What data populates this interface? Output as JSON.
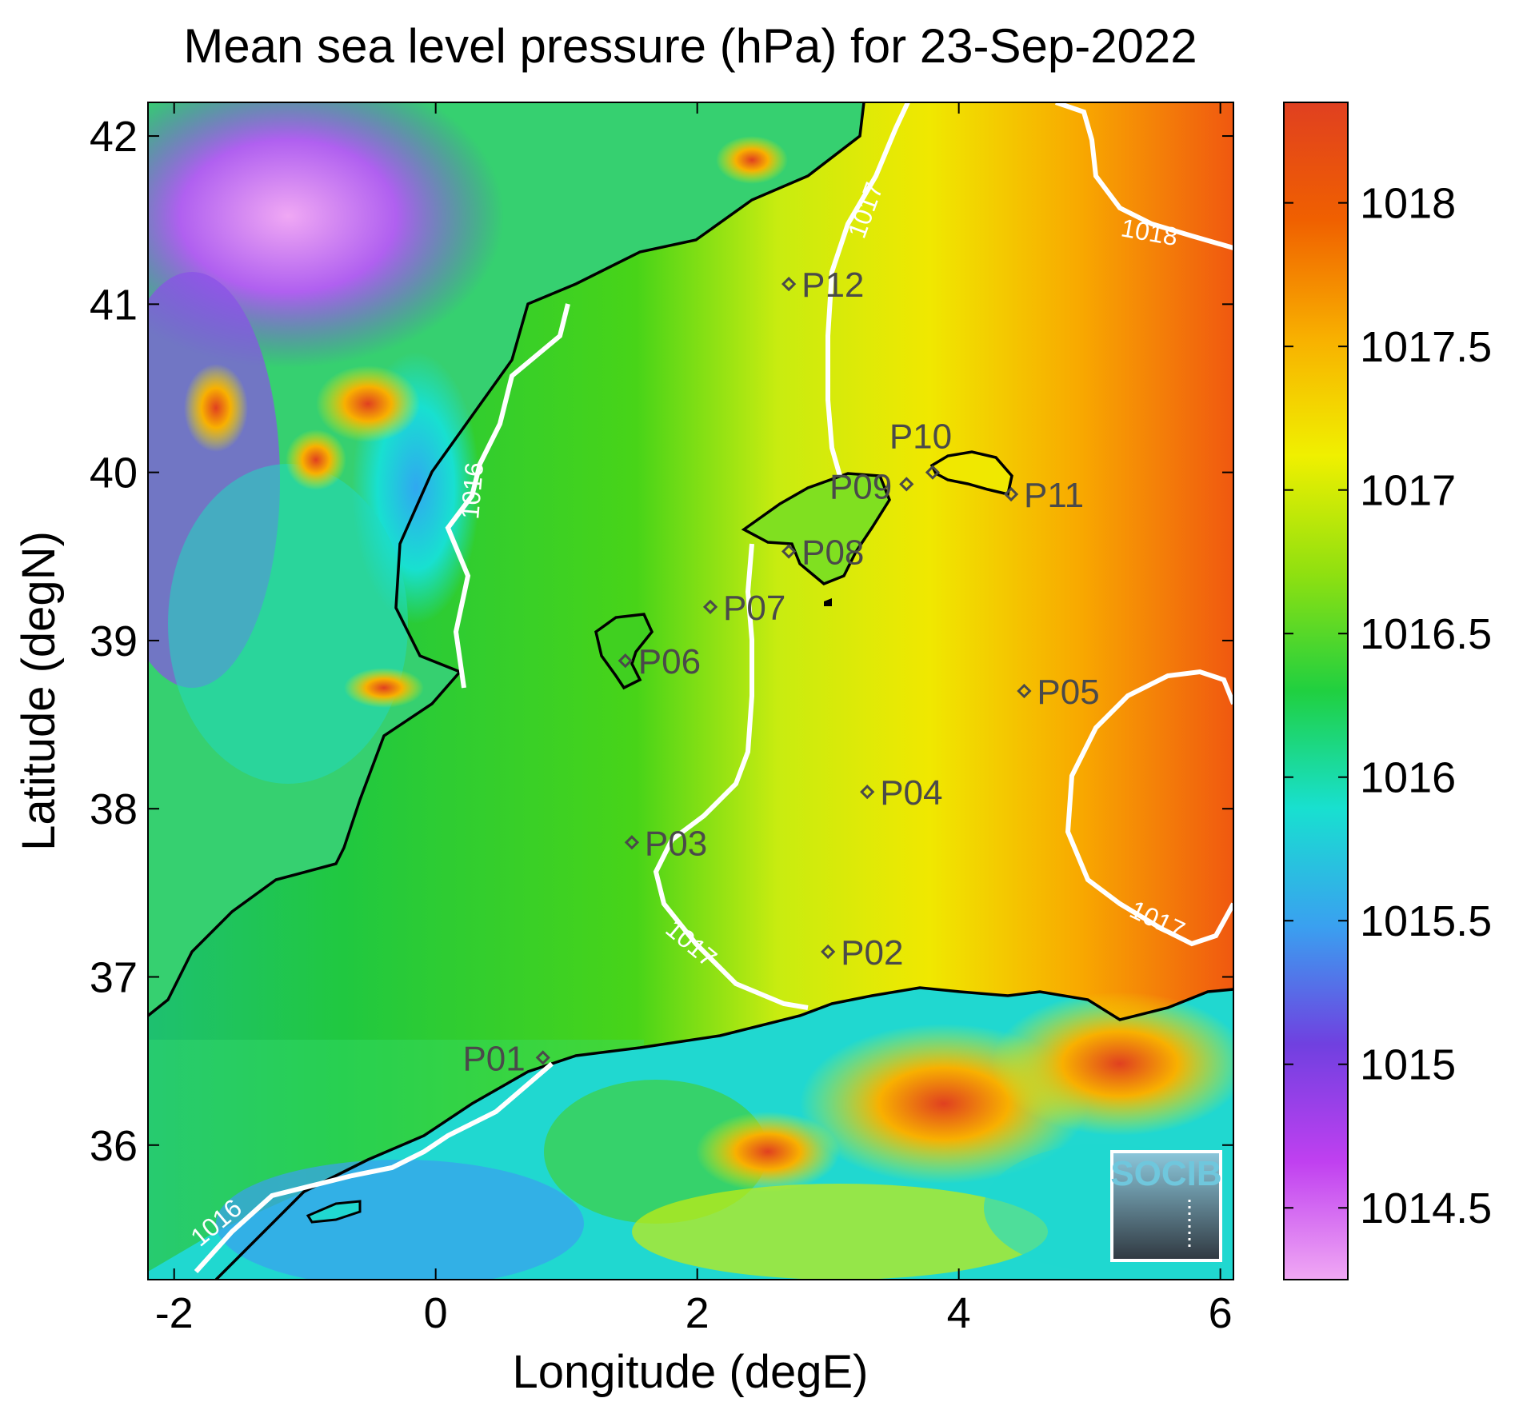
{
  "title": "Mean sea level pressure (hPa) for 23-Sep-2022",
  "xlabel": "Longitude (degE)",
  "ylabel": "Latitude (degN)",
  "x_ticks": [
    "-2",
    "0",
    "2",
    "4",
    "6"
  ],
  "y_ticks": [
    "36",
    "37",
    "38",
    "39",
    "40",
    "41",
    "42"
  ],
  "colorbar": {
    "ticks": [
      "1014.5",
      "1015",
      "1015.5",
      "1016",
      "1016.5",
      "1017",
      "1017.5",
      "1018"
    ],
    "range": [
      1014.25,
      1018.35
    ],
    "colors": [
      "#f0a8f4",
      "#c040f0",
      "#7040e0",
      "#3aa0f0",
      "#18e0d0",
      "#20d040",
      "#90e010",
      "#f0f000",
      "#f8b000",
      "#f06000",
      "#e04020"
    ]
  },
  "contour_labels": [
    {
      "text": "1016",
      "id": "c1016-north"
    },
    {
      "text": "1016",
      "id": "c1016-south"
    },
    {
      "text": "1017",
      "id": "c1017-north"
    },
    {
      "text": "1017",
      "id": "c1017-south"
    },
    {
      "text": "1017",
      "id": "c1017-east"
    },
    {
      "text": "1018",
      "id": "c1018"
    }
  ],
  "stations": [
    {
      "name": "P01",
      "lon": 0.82,
      "lat": 36.52
    },
    {
      "name": "P02",
      "lon": 3.0,
      "lat": 37.15
    },
    {
      "name": "P03",
      "lon": 1.5,
      "lat": 37.8
    },
    {
      "name": "P04",
      "lon": 3.3,
      "lat": 38.1
    },
    {
      "name": "P05",
      "lon": 4.5,
      "lat": 38.7
    },
    {
      "name": "P06",
      "lon": 1.45,
      "lat": 38.88
    },
    {
      "name": "P07",
      "lon": 2.1,
      "lat": 39.2
    },
    {
      "name": "P08",
      "lon": 2.7,
      "lat": 39.53
    },
    {
      "name": "P09",
      "lon": 3.6,
      "lat": 39.93
    },
    {
      "name": "P10",
      "lon": 3.8,
      "lat": 40.0
    },
    {
      "name": "P11",
      "lon": 4.4,
      "lat": 39.87
    },
    {
      "name": "P12",
      "lon": 2.7,
      "lat": 41.12
    }
  ],
  "logo": {
    "text": "SOCIB"
  },
  "chart_data": {
    "type": "heatmap",
    "title": "Mean sea level pressure (hPa) for 23-Sep-2022",
    "xlabel": "Longitude (degE)",
    "ylabel": "Latitude (degN)",
    "xlim": [
      -2.2,
      6.1
    ],
    "ylim": [
      35.2,
      42.2
    ],
    "colorbar_range": [
      1014.25,
      1018.35
    ],
    "contour_levels": [
      1016,
      1017,
      1018
    ]
  }
}
